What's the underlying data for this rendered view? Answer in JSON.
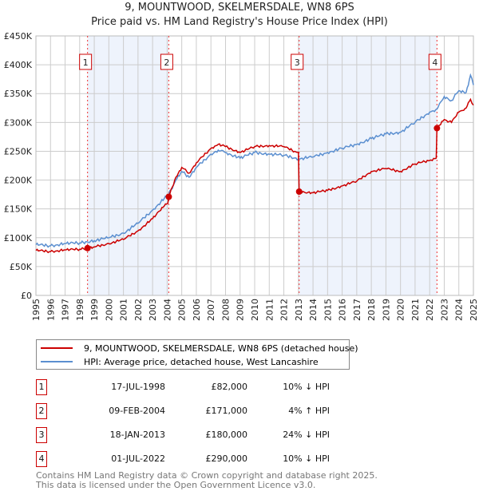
{
  "chart_data": {
    "type": "line",
    "title": "9, MOUNTWOOD, SKELMERSDALE, WN8 6PS",
    "subtitle": "Price paid vs. HM Land Registry's House Price Index (HPI)",
    "xlim": [
      1995,
      2025
    ],
    "ylim": [
      0,
      450000
    ],
    "x_ticks": [
      "1995",
      "1996",
      "1997",
      "1998",
      "1999",
      "2000",
      "2001",
      "2002",
      "2003",
      "2004",
      "2005",
      "2006",
      "2007",
      "2008",
      "2009",
      "2010",
      "2011",
      "2012",
      "2013",
      "2014",
      "2015",
      "2016",
      "2017",
      "2018",
      "2019",
      "2020",
      "2021",
      "2022",
      "2023",
      "2024",
      "2025"
    ],
    "y_ticks": [
      {
        "v": 0,
        "label": "£0"
      },
      {
        "v": 50000,
        "label": "£50K"
      },
      {
        "v": 100000,
        "label": "£100K"
      },
      {
        "v": 150000,
        "label": "£150K"
      },
      {
        "v": 200000,
        "label": "£200K"
      },
      {
        "v": 250000,
        "label": "£250K"
      },
      {
        "v": 300000,
        "label": "£300K"
      },
      {
        "v": 350000,
        "label": "£350K"
      },
      {
        "v": 400000,
        "label": "£400K"
      },
      {
        "v": 450000,
        "label": "£450K"
      }
    ],
    "grid": true,
    "series": [
      {
        "name": "9, MOUNTWOOD, SKELMERSDALE, WN8 6PS (detached house)",
        "color": "#cc0000",
        "x": [
          1995,
          1996,
          1997,
          1998,
          1998.54,
          1999,
          2000,
          2001,
          2002,
          2003,
          2003.8,
          2004.05,
          2004.11,
          2004.6,
          2005,
          2005.5,
          2006,
          2007,
          2007.5,
          2008,
          2009,
          2010,
          2011,
          2012,
          2012.9,
          2013.0,
          2013.05,
          2014,
          2015,
          2016,
          2017,
          2018,
          2019,
          2020,
          2021,
          2022,
          2022.45,
          2022.5,
          2023,
          2023.5,
          2024,
          2024.5,
          2024.8,
          2025
        ],
        "y": [
          78000,
          76000,
          79000,
          80000,
          82000,
          84000,
          90000,
          97000,
          112000,
          133000,
          155000,
          160000,
          171000,
          205000,
          222000,
          212000,
          230000,
          255000,
          262000,
          258000,
          248000,
          258000,
          260000,
          258000,
          248000,
          248000,
          180000,
          178000,
          182000,
          190000,
          198000,
          215000,
          220000,
          215000,
          228000,
          234000,
          238000,
          290000,
          305000,
          300000,
          318000,
          325000,
          340000,
          330000
        ]
      },
      {
        "name": "HPI: Average price, detached house, West Lancashire",
        "color": "#5b8fd0",
        "x": [
          1995,
          1996,
          1997,
          1998,
          1999,
          2000,
          2001,
          2002,
          2003,
          2003.8,
          2004.1,
          2004.6,
          2005,
          2005.5,
          2006,
          2007,
          2007.5,
          2008,
          2009,
          2010,
          2011,
          2012,
          2013,
          2014,
          2015,
          2016,
          2017,
          2018,
          2019,
          2020,
          2021,
          2022,
          2022.5,
          2023,
          2023.5,
          2024,
          2024.5,
          2024.8,
          2025
        ],
        "y": [
          88000,
          86000,
          90000,
          91000,
          95000,
          100000,
          108000,
          125000,
          148000,
          168000,
          175000,
          200000,
          215000,
          205000,
          222000,
          245000,
          252000,
          248000,
          238000,
          248000,
          245000,
          243000,
          237000,
          240000,
          248000,
          255000,
          262000,
          272000,
          280000,
          283000,
          300000,
          318000,
          323000,
          345000,
          338000,
          355000,
          352000,
          382000,
          365000
        ]
      }
    ],
    "sales": [
      {
        "num": "1",
        "x": 1998.54,
        "y": 82000,
        "date": "17-JUL-1998",
        "price": "£82,000",
        "hpi": "10% ↓ HPI"
      },
      {
        "num": "2",
        "x": 2004.11,
        "y": 171000,
        "date": "09-FEB-2004",
        "price": "£171,000",
        "hpi": "4% ↑ HPI"
      },
      {
        "num": "3",
        "x": 2013.05,
        "y": 180000,
        "date": "18-JAN-2013",
        "price": "£180,000",
        "hpi": "24% ↓ HPI"
      },
      {
        "num": "4",
        "x": 2022.5,
        "y": 290000,
        "date": "01-JUL-2022",
        "price": "£290,000",
        "hpi": "10% ↓ HPI"
      }
    ],
    "shaded_ranges": [
      [
        1998.54,
        2004.11
      ],
      [
        2013.05,
        2022.5
      ]
    ]
  },
  "legend": {
    "red": "9, MOUNTWOOD, SKELMERSDALE, WN8 6PS (detached house)",
    "blue": "HPI: Average price, detached house, West Lancashire"
  },
  "footer": {
    "line1": "Contains HM Land Registry data © Crown copyright and database right 2025.",
    "line2": "This data is licensed under the Open Government Licence v3.0."
  }
}
